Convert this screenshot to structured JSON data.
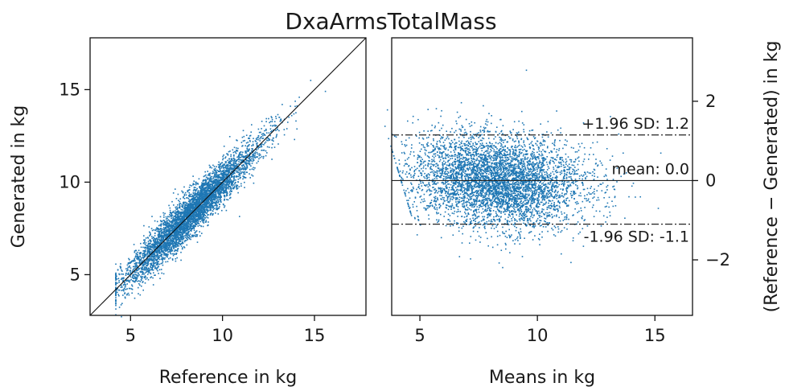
{
  "title": "DxaArmsTotalMass",
  "chart_data": [
    {
      "type": "scatter",
      "name": "reference-vs-generated",
      "xlabel": "Reference in kg",
      "ylabel": "Generated in kg",
      "xlim": [
        2.8,
        17.8
      ],
      "ylim": [
        2.8,
        17.8
      ],
      "xticks": [
        5,
        10,
        15
      ],
      "yticks": [
        5,
        10,
        15
      ],
      "xtick_labels": [
        "5",
        "10",
        "15"
      ],
      "ytick_labels": [
        "5",
        "10",
        "15"
      ],
      "identity_line": true,
      "point_color": "#1f77b4",
      "n_points_approx": 5000,
      "distribution": {
        "x_mean": 8.3,
        "x_sd": 1.7,
        "x_range": [
          4.2,
          16.6
        ],
        "y_minus_x_mean": 0.0,
        "y_minus_x_sd": 0.58
      }
    },
    {
      "type": "scatter",
      "name": "bland-altman",
      "xlabel": "Means in kg",
      "ylabel": "(Reference − Generated) in kg",
      "ylabel_position": "right",
      "xlim": [
        3.8,
        16.6
      ],
      "ylim": [
        -3.4,
        3.6
      ],
      "xticks": [
        5,
        10,
        15
      ],
      "yticks": [
        -2,
        0,
        2
      ],
      "xtick_labels": [
        "5",
        "10",
        "15"
      ],
      "ytick_labels": [
        "−2",
        "0",
        "2"
      ],
      "point_color": "#1f77b4",
      "reference_lines": [
        {
          "name": "upper-loa",
          "y": 1.15,
          "label": "+1.96 SD: 1.2",
          "style": "dashdot"
        },
        {
          "name": "mean",
          "y": 0.0,
          "label": "mean: 0.0",
          "style": "solid"
        },
        {
          "name": "lower-loa",
          "y": -1.1,
          "label": "-1.96 SD: -1.1",
          "style": "dashdot"
        }
      ]
    }
  ]
}
